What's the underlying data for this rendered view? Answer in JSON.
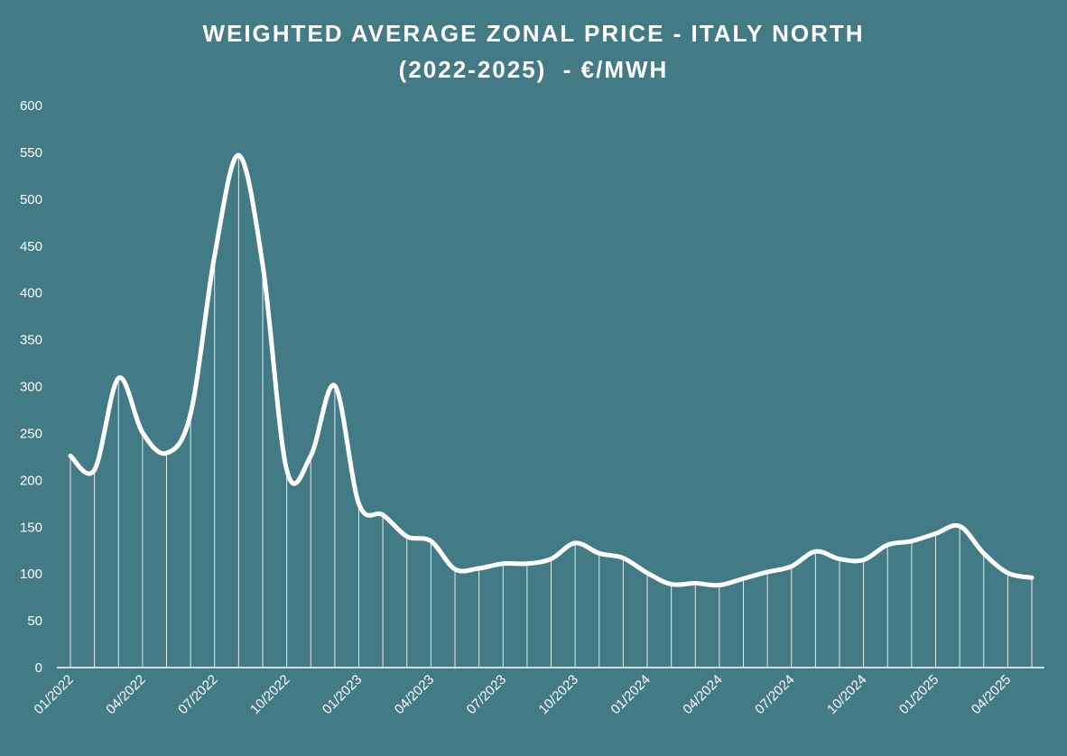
{
  "chart_data": {
    "type": "line",
    "title": "WEIGHTED AVERAGE ZONAL PRICE - ITALY NORTH",
    "subtitle": "(2022-2025)  - €/MWH",
    "xlabel": "",
    "ylabel": "",
    "ylim": [
      0,
      600
    ],
    "yticks": [
      "0",
      "50",
      "100",
      "150",
      "200",
      "250",
      "300",
      "350",
      "400",
      "450",
      "500",
      "550",
      "600"
    ],
    "grid": "vertical drop lines at each data point",
    "legend": "none",
    "x": [
      "01/2022",
      "02/2022",
      "03/2022",
      "04/2022",
      "05/2022",
      "06/2022",
      "07/2022",
      "08/2022",
      "09/2022",
      "10/2022",
      "11/2022",
      "12/2022",
      "01/2023",
      "02/2023",
      "03/2023",
      "04/2023",
      "05/2023",
      "06/2023",
      "07/2023",
      "08/2023",
      "09/2023",
      "10/2023",
      "11/2023",
      "12/2023",
      "01/2024",
      "02/2024",
      "03/2024",
      "04/2024",
      "05/2024",
      "06/2024",
      "07/2024",
      "08/2024",
      "09/2024",
      "10/2024",
      "11/2024",
      "12/2024",
      "01/2025",
      "02/2025",
      "03/2025",
      "04/2025",
      "05/2025"
    ],
    "xtick_labels": [
      "01/2022",
      "04/2022",
      "07/2022",
      "10/2022",
      "01/2023",
      "04/2023",
      "07/2023",
      "10/2023",
      "01/2024",
      "04/2024",
      "07/2024",
      "10/2024",
      "01/2025",
      "04/2025"
    ],
    "series": [
      {
        "values": [
          226,
          211,
          309,
          251,
          229,
          271,
          440,
          547,
          430,
          211,
          226,
          301,
          175,
          163,
          140,
          135,
          105,
          106,
          111,
          111,
          116,
          133,
          122,
          117,
          101,
          89,
          90,
          88,
          95,
          102,
          108,
          124,
          116,
          115,
          131,
          135,
          143,
          151,
          122,
          101,
          96
        ]
      }
    ],
    "colors": {
      "background": "#427b85",
      "line": "#ffffff",
      "axis": "#ffffff",
      "text": "#ffffff"
    }
  }
}
